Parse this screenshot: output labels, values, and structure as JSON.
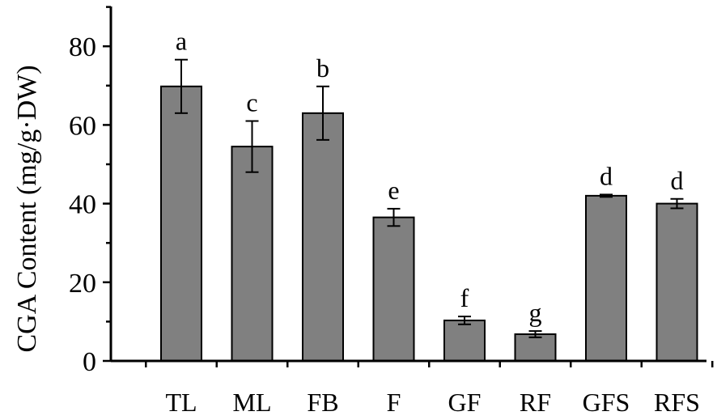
{
  "chart_data": {
    "type": "bar",
    "ylabel": "CGA Content (mg/g·DW)",
    "xlabel": "",
    "ylim": [
      0,
      90
    ],
    "yticks": [
      0,
      20,
      40,
      60,
      80
    ],
    "grid": false,
    "categories": [
      "TL",
      "ML",
      "FB",
      "F",
      "GF",
      "RF",
      "GFS",
      "RFS"
    ],
    "values": [
      69.8,
      54.5,
      63.0,
      36.5,
      10.3,
      6.8,
      42.0,
      40.0
    ],
    "errors": [
      6.8,
      6.5,
      6.8,
      2.2,
      1.0,
      0.8,
      0.3,
      1.2
    ],
    "significance": [
      "a",
      "c",
      "b",
      "e",
      "f",
      "g",
      "d",
      "d"
    ],
    "colors": {
      "bar": "#808080",
      "outline": "#000000"
    }
  }
}
